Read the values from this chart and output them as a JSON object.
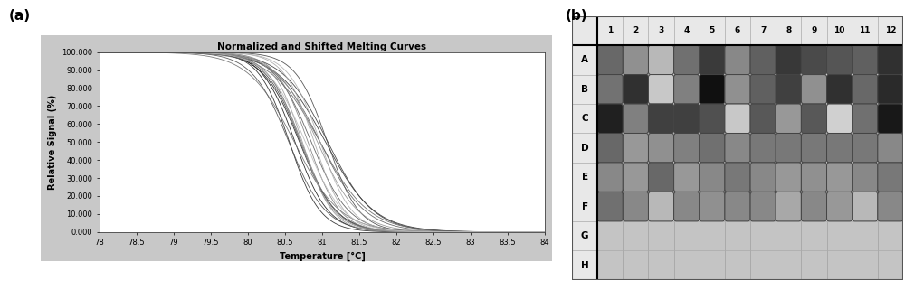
{
  "panel_a_title": "Normalized and Shifted Melting Curves",
  "xlabel": "Temperature [°C]",
  "ylabel": "Relative Signal (%)",
  "x_min": 78,
  "x_max": 84,
  "y_min": 0,
  "y_max": 100,
  "yticks": [
    0,
    10,
    20,
    30,
    40,
    50,
    60,
    70,
    80,
    90,
    100
  ],
  "ytick_labels": [
    "0.000",
    "10.000",
    "20.000",
    "30.000",
    "40.000",
    "50.000",
    "60.000",
    "70.000",
    "80.000",
    "90.000",
    "100.000"
  ],
  "xticks": [
    78,
    78.5,
    79,
    79.5,
    80,
    80.5,
    81,
    81.5,
    82,
    82.5,
    83,
    83.5,
    84
  ],
  "xtick_labels": [
    "78",
    "78.5",
    "79",
    "79.5",
    "80",
    "80.5",
    "81",
    "81.5",
    "82",
    "82.5",
    "83",
    "83.5",
    "84"
  ],
  "plot_bg": "#ffffff",
  "outer_bg": "#c8c8c8",
  "fig_bg": "#ffffff",
  "curve_colors": [
    "#1a1a1a",
    "#222222",
    "#2a2a2a",
    "#333333",
    "#3d3d3d",
    "#444444",
    "#4a4a4a",
    "#505050",
    "#585858",
    "#606060",
    "#686868",
    "#707070",
    "#787878",
    "#808080",
    "#888888",
    "#909090",
    "#9a9a9a",
    "#a8a8a8",
    "#b0b0b0",
    "#bababa"
  ],
  "num_curves": 20,
  "plate_rows": [
    "A",
    "B",
    "C",
    "D",
    "E",
    "F",
    "G",
    "H"
  ],
  "plate_cols": [
    "1",
    "2",
    "3",
    "4",
    "5",
    "6",
    "7",
    "8",
    "9",
    "10",
    "11",
    "12"
  ],
  "well_colors": {
    "A": [
      "#686868",
      "#909090",
      "#b8b8b8",
      "#707070",
      "#3a3a3a",
      "#888888",
      "#606060",
      "#383838",
      "#4a4a4a",
      "#555555",
      "#606060",
      "#303030"
    ],
    "B": [
      "#727272",
      "#303030",
      "#c8c8c8",
      "#808080",
      "#101010",
      "#909090",
      "#606060",
      "#404040",
      "#909090",
      "#303030",
      "#686868",
      "#2a2a2a"
    ],
    "C": [
      "#202020",
      "#808080",
      "#404040",
      "#404040",
      "#505050",
      "#c8c8c8",
      "#585858",
      "#989898",
      "#585858",
      "#d0d0d0",
      "#707070",
      "#181818"
    ],
    "D": [
      "#686868",
      "#989898",
      "#909090",
      "#808080",
      "#707070",
      "#888888",
      "#787878",
      "#787878",
      "#787878",
      "#787878",
      "#787878",
      "#888888"
    ],
    "E": [
      "#888888",
      "#989898",
      "#686868",
      "#989898",
      "#888888",
      "#787878",
      "#888888",
      "#989898",
      "#909090",
      "#989898",
      "#888888",
      "#787878"
    ],
    "F": [
      "#707070",
      "#888888",
      "#b8b8b8",
      "#888888",
      "#909090",
      "#888888",
      "#888888",
      "#a8a8a8",
      "#888888",
      "#989898",
      "#b8b8b8",
      "#888888"
    ],
    "G": [
      "#bbbbbb",
      "#bbbbbb",
      "#bbbbbb",
      "#bbbbbb",
      "#bbbbbb",
      "#bbbbbb",
      "#bbbbbb",
      "#bbbbbb",
      "#bbbbbb",
      "#bbbbbb",
      "#bbbbbb",
      "#bbbbbb"
    ],
    "H": [
      "#bbbbbb",
      "#bbbbbb",
      "#bbbbbb",
      "#bbbbbb",
      "#bbbbbb",
      "#bbbbbb",
      "#bbbbbb",
      "#bbbbbb",
      "#bbbbbb",
      "#bbbbbb",
      "#bbbbbb",
      "#bbbbbb"
    ]
  },
  "label_a": "(a)",
  "label_b": "(b)",
  "title_fontsize": 7.5,
  "axis_label_fontsize": 7,
  "tick_fontsize": 6
}
